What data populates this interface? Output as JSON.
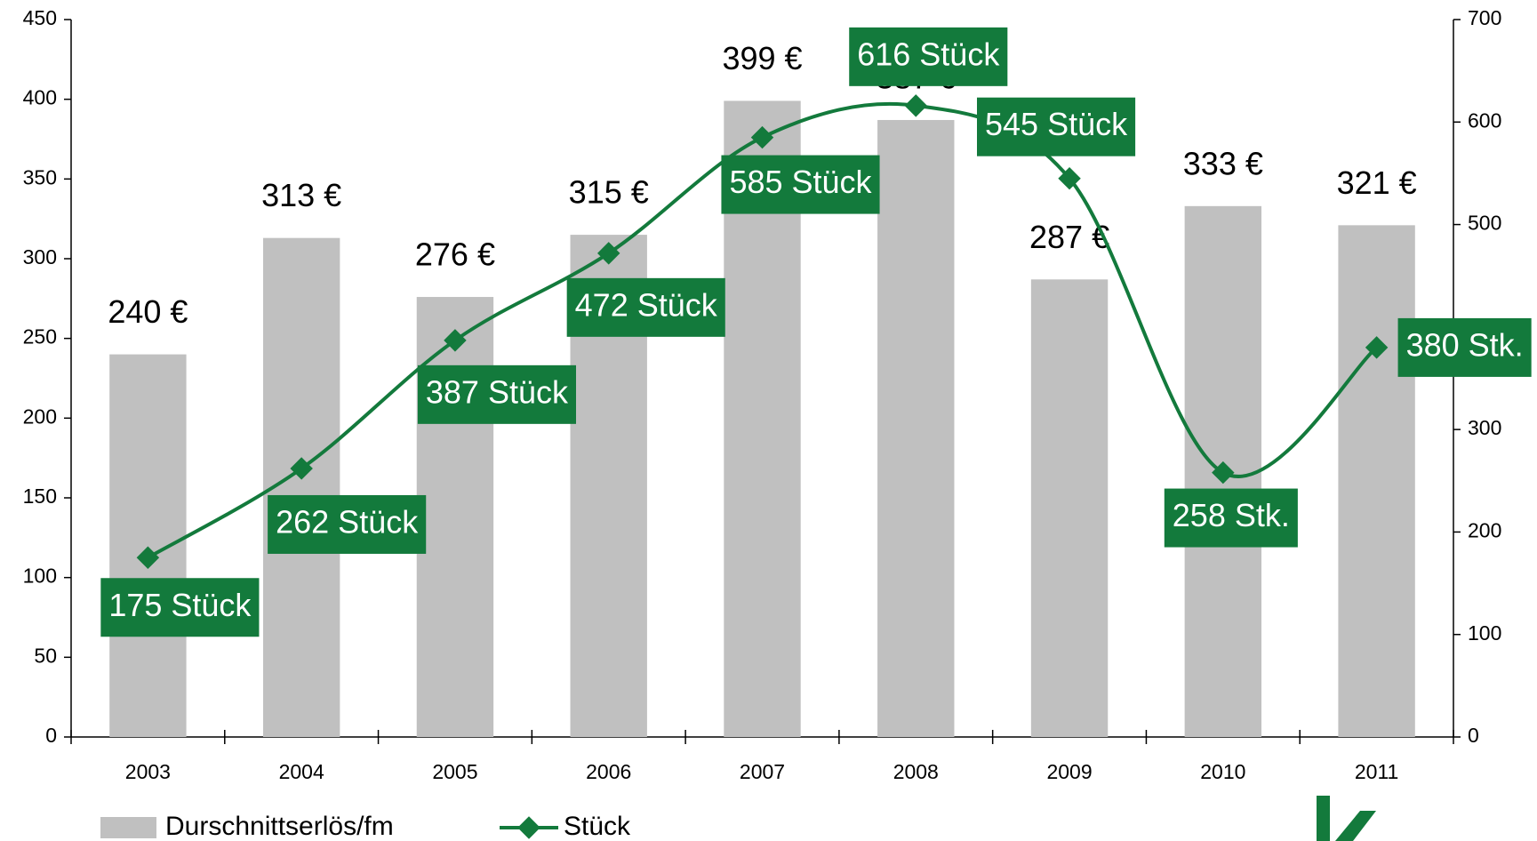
{
  "chart_data": {
    "type": "bar-line",
    "categories": [
      "2003",
      "2004",
      "2005",
      "2006",
      "2007",
      "2008",
      "2009",
      "2010",
      "2011"
    ],
    "series": [
      {
        "name": "Durschnittserlös/fm",
        "type": "bar",
        "color": "#c0c0c0",
        "values": [
          240,
          313,
          276,
          315,
          399,
          387,
          287,
          333,
          321
        ],
        "value_labels": [
          "240 €",
          "313 €",
          "276 €",
          "315 €",
          "399 €",
          "387 €",
          "287 €",
          "333 €",
          "321 €"
        ]
      },
      {
        "name": "Stück",
        "type": "line",
        "axis": "y2",
        "color": "#137a3c",
        "values": [
          175,
          262,
          387,
          472,
          585,
          616,
          545,
          258,
          380
        ],
        "value_labels": [
          "175 Stück",
          "262 Stück",
          "387 Stück",
          "472 Stück",
          "585 Stück",
          "616 Stück",
          "545 Stück",
          "258 Stk.",
          "380 Stk."
        ]
      }
    ],
    "ylim": [
      0,
      450
    ],
    "yticks": [
      0,
      50,
      100,
      150,
      200,
      250,
      300,
      350,
      400,
      450
    ],
    "y2lim": [
      0,
      700
    ],
    "y2ticks": [
      0,
      100,
      200,
      300,
      400,
      500,
      600,
      700
    ]
  }
}
